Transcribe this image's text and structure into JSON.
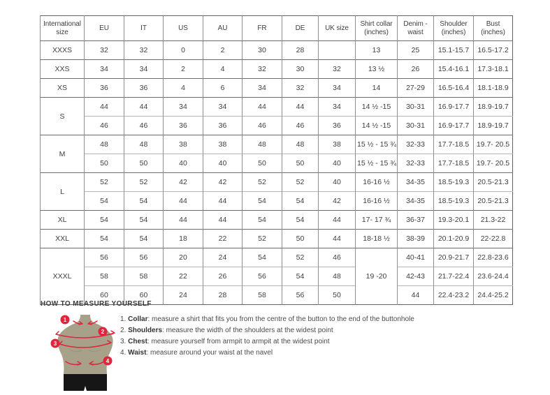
{
  "size_table": {
    "headers": [
      "International size",
      "EU",
      "IT",
      "US",
      "AU",
      "FR",
      "DE",
      "UK size",
      "Shirt collar (inches)",
      "Denim - waist",
      "Shoulder (inches)",
      "Bust (inches)"
    ],
    "groups": [
      {
        "label": "XXXS",
        "rows": [
          [
            "32",
            "32",
            "0",
            "2",
            "30",
            "28",
            "",
            "13",
            "25",
            "15.1-15.7",
            "16.5-17.2"
          ]
        ]
      },
      {
        "label": "XXS",
        "rows": [
          [
            "34",
            "34",
            "2",
            "4",
            "32",
            "30",
            "32",
            "13 ½",
            "26",
            "15.4-16.1",
            "17.3-18.1"
          ]
        ]
      },
      {
        "label": "XS",
        "rows": [
          [
            "36",
            "36",
            "4",
            "6",
            "34",
            "32",
            "34",
            "14",
            "27-29",
            "16.5-16.4",
            "18.1-18.9"
          ]
        ]
      },
      {
        "label": "S",
        "rows": [
          [
            "44",
            "44",
            "34",
            "34",
            "44",
            "44",
            "34",
            "14 ½ -15",
            "30-31",
            "16.9-17.7",
            "18.9-19.7"
          ],
          [
            "46",
            "46",
            "36",
            "36",
            "46",
            "46",
            "36",
            "14 ½ -15",
            "30-31",
            "16.9-17.7",
            "18.9-19.7"
          ]
        ]
      },
      {
        "label": "M",
        "rows": [
          [
            "48",
            "48",
            "38",
            "38",
            "48",
            "48",
            "38",
            "15 ½ - 15 ¾",
            "32-33",
            "17.7-18.5",
            "19.7- 20.5"
          ],
          [
            "50",
            "50",
            "40",
            "40",
            "50",
            "50",
            "40",
            "15 ½ - 15 ¾",
            "32-33",
            "17.7-18.5",
            "19.7- 20.5"
          ]
        ]
      },
      {
        "label": "L",
        "rows": [
          [
            "52",
            "52",
            "42",
            "42",
            "52",
            "52",
            "40",
            "16-16 ½",
            "34-35",
            "18.5-19.3",
            "20.5-21.3"
          ],
          [
            "54",
            "54",
            "44",
            "44",
            "54",
            "54",
            "42",
            "16-16 ½",
            "34-35",
            "18.5-19.3",
            "20.5-21.3"
          ]
        ]
      },
      {
        "label": "XL",
        "rows": [
          [
            "54",
            "54",
            "44",
            "44",
            "54",
            "54",
            "44",
            "17- 17 ¾",
            "36-37",
            "19.3-20.1",
            "21.3-22"
          ]
        ]
      },
      {
        "label": "XXL",
        "rows": [
          [
            "54",
            "54",
            "18",
            "22",
            "52",
            "50",
            "44",
            "18-18 ½",
            "38-39",
            "20.1-20.9",
            "22-22.8"
          ]
        ]
      },
      {
        "label": "XXXL",
        "collar": "19 -20",
        "rows": [
          [
            "56",
            "56",
            "20",
            "24",
            "54",
            "52",
            "46",
            "40-41",
            "20.9-21.7",
            "22.8-23.6"
          ],
          [
            "58",
            "58",
            "22",
            "26",
            "56",
            "54",
            "48",
            "42-43",
            "21.7-22.4",
            "23.6-24.4"
          ],
          [
            "60",
            "60",
            "24",
            "28",
            "58",
            "56",
            "50",
            "44",
            "22.4-23.2",
            "24.4-25.2"
          ]
        ]
      }
    ]
  },
  "measure_section": {
    "title": "HOW TO MEASURE YOURSELF",
    "items": [
      {
        "num": "1.",
        "term": "Collar",
        "desc": ": measure a shirt that fits you from the centre of the button to the end of the buttonhole"
      },
      {
        "num": "2.",
        "term": "Shoulders",
        "desc": ": measure the width of the shoulders at the widest point"
      },
      {
        "num": "3.",
        "term": "Chest",
        "desc": ": measure yourself from armpit to armpit at the widest point"
      },
      {
        "num": "4.",
        "term": "Waist",
        "desc": ": measure around your waist at the navel"
      }
    ],
    "figure": {
      "markers": [
        "1",
        "2",
        "3",
        "4"
      ]
    }
  },
  "colors": {
    "accent_red": "#e2243c",
    "mannequin_body": "#a7a18a",
    "shorts_black": "#161616",
    "border_dark": "#6b6b6b",
    "border_light": "#b6b6b6",
    "text": "#404040"
  }
}
